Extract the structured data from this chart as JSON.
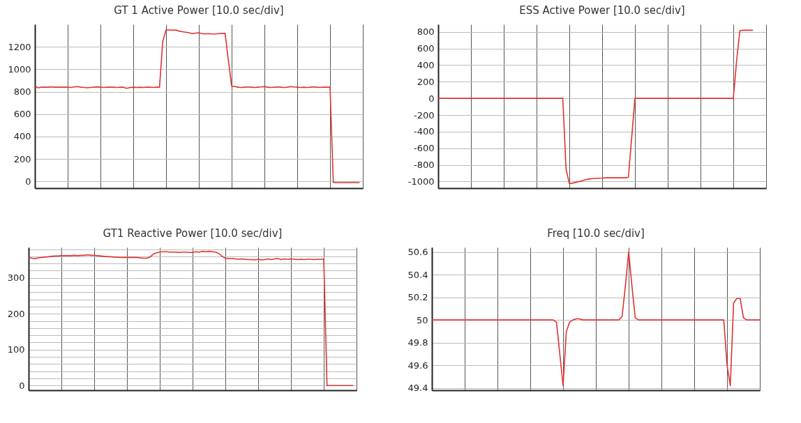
{
  "chart_data": [
    {
      "type": "line",
      "title": "GT 1 Active Power [10.0 sec/div]",
      "categories": [
        null,
        null,
        null,
        null,
        null,
        null,
        null,
        null,
        null,
        null,
        null,
        null,
        null,
        null,
        null,
        null,
        null,
        null,
        null,
        null,
        null,
        null,
        null,
        null,
        null,
        null,
        null,
        null,
        null,
        null,
        null,
        null,
        null,
        null,
        null,
        null,
        null,
        null,
        null,
        null,
        null,
        null,
        null,
        null,
        null,
        null,
        null,
        null,
        null,
        null,
        null,
        null,
        null,
        null,
        null,
        null,
        null,
        null,
        null,
        null,
        null,
        null,
        null,
        null,
        null,
        null,
        null,
        null,
        null,
        null,
        null,
        null,
        null,
        null,
        null,
        null,
        null,
        null,
        null,
        null,
        null,
        null,
        null,
        null,
        null,
        null,
        null,
        null,
        null,
        null,
        null,
        null,
        null,
        null,
        null,
        null,
        null,
        null,
        null,
        null,
        null
      ],
      "ylim": [
        -60,
        1400
      ],
      "yticks": [
        0,
        200,
        400,
        600,
        800,
        1000,
        1200
      ],
      "grid": true,
      "tick_labels": "y",
      "series": [
        {
          "color": "#e03232",
          "values": [
            850,
            835,
            840,
            840,
            840,
            842,
            840,
            840,
            840,
            840,
            840,
            838,
            842,
            845,
            840,
            838,
            835,
            838,
            840,
            843,
            840,
            838,
            840,
            840,
            840,
            838,
            840,
            840,
            830,
            838,
            840,
            838,
            840,
            838,
            840,
            840,
            838,
            840,
            840,
            1250,
            1350,
            1350,
            1348,
            1350,
            1340,
            1335,
            1330,
            1325,
            1318,
            1322,
            1325,
            1318,
            1315,
            1318,
            1315,
            1315,
            1318,
            1320,
            1320,
            1080,
            850,
            845,
            840,
            838,
            840,
            842,
            840,
            838,
            840,
            842,
            845,
            840,
            838,
            840,
            842,
            840,
            838,
            840,
            845,
            842,
            840,
            838,
            840,
            838,
            840,
            842,
            840,
            838,
            840,
            840,
            840,
            -10,
            -10,
            -10,
            -10,
            -10,
            -10,
            -10,
            -10,
            -10,
            null
          ]
        }
      ]
    },
    {
      "type": "line",
      "title": "ESS Active Power [10.0 sec/div]",
      "categories": [
        null,
        null,
        null,
        null,
        null,
        null,
        null,
        null,
        null,
        null,
        null,
        null,
        null,
        null,
        null,
        null,
        null,
        null,
        null,
        null,
        null,
        null,
        null,
        null,
        null,
        null,
        null,
        null,
        null,
        null,
        null,
        null,
        null,
        null,
        null,
        null,
        null,
        null,
        null,
        null,
        null,
        null,
        null,
        null,
        null,
        null,
        null,
        null,
        null,
        null,
        null,
        null,
        null,
        null,
        null,
        null,
        null,
        null,
        null,
        null,
        null,
        null,
        null,
        null,
        null,
        null,
        null,
        null,
        null,
        null,
        null,
        null,
        null,
        null,
        null,
        null,
        null,
        null,
        null,
        null,
        null,
        null,
        null,
        null,
        null,
        null,
        null,
        null,
        null,
        null,
        null,
        null,
        null,
        null,
        null,
        null,
        null,
        null,
        null,
        null,
        null
      ],
      "ylim": [
        -1080,
        890
      ],
      "yticks": [
        -1000,
        -800,
        -600,
        -400,
        -200,
        0,
        200,
        400,
        600,
        800
      ],
      "grid": true,
      "tick_labels": "y",
      "series": [
        {
          "color": "#e03232",
          "values": [
            0,
            0,
            0,
            0,
            0,
            0,
            0,
            0,
            0,
            0,
            0,
            0,
            0,
            0,
            0,
            0,
            0,
            0,
            0,
            0,
            0,
            0,
            0,
            0,
            0,
            0,
            0,
            0,
            0,
            0,
            0,
            0,
            0,
            0,
            0,
            0,
            0,
            0,
            0,
            -850,
            -1025,
            -1020,
            -1010,
            -1000,
            -990,
            -978,
            -970,
            -965,
            -962,
            -960,
            -958,
            -955,
            -955,
            -955,
            -955,
            -955,
            -955,
            -955,
            -950,
            -475,
            0,
            0,
            0,
            0,
            0,
            0,
            0,
            0,
            0,
            0,
            0,
            0,
            0,
            0,
            0,
            0,
            0,
            0,
            0,
            0,
            0,
            0,
            0,
            0,
            0,
            0,
            0,
            0,
            0,
            0,
            0,
            450,
            815,
            820,
            820,
            820,
            820,
            null,
            null,
            null,
            null
          ]
        }
      ]
    },
    {
      "type": "line",
      "title": "GT1 Reactive Power [10.0 sec/div]",
      "categories": [
        null,
        null,
        null,
        null,
        null,
        null,
        null,
        null,
        null,
        null,
        null,
        null,
        null,
        null,
        null,
        null,
        null,
        null,
        null,
        null,
        null,
        null,
        null,
        null,
        null,
        null,
        null,
        null,
        null,
        null,
        null,
        null,
        null,
        null,
        null,
        null,
        null,
        null,
        null,
        null,
        null,
        null,
        null,
        null,
        null,
        null,
        null,
        null,
        null,
        null,
        null,
        null,
        null,
        null,
        null,
        null,
        null,
        null,
        null,
        null,
        null,
        null,
        null,
        null,
        null,
        null,
        null,
        null,
        null,
        null,
        null,
        null,
        null,
        null,
        null,
        null,
        null,
        null,
        null,
        null,
        null,
        null,
        null,
        null,
        null,
        null,
        null,
        null,
        null,
        null,
        null,
        null,
        null,
        null,
        null,
        null,
        null,
        null,
        null,
        null,
        null
      ],
      "ylim": [
        -13,
        385
      ],
      "yticks": [
        0,
        {
          "value": 20,
          "label": null
        },
        {
          "value": 40,
          "label": null
        },
        {
          "value": 60,
          "label": null
        },
        {
          "value": 80,
          "label": null
        },
        100,
        {
          "value": 120,
          "label": null
        },
        {
          "value": 140,
          "label": null
        },
        {
          "value": 160,
          "label": null
        },
        {
          "value": 180,
          "label": null
        },
        200,
        {
          "value": 220,
          "label": null
        },
        {
          "value": 240,
          "label": null
        },
        {
          "value": 260,
          "label": null
        },
        {
          "value": 280,
          "label": null
        },
        300,
        {
          "value": 320,
          "label": null
        },
        {
          "value": 340,
          "label": null
        },
        {
          "value": 360,
          "label": null
        },
        {
          "value": 380,
          "label": null
        }
      ],
      "grid": true,
      "tick_labels": "y",
      "series": [
        {
          "color": "#e03232",
          "values": [
            357,
            355,
            354,
            356,
            357,
            358,
            359,
            360,
            361,
            361,
            362,
            362,
            362,
            362,
            363,
            362,
            363,
            363,
            364,
            363,
            363,
            362,
            361,
            360,
            359,
            359,
            358,
            358,
            357,
            357,
            357,
            357,
            357,
            357,
            356,
            355,
            355,
            358,
            366,
            370,
            372,
            373,
            373,
            372,
            372,
            372,
            371,
            372,
            372,
            371,
            371,
            373,
            372,
            374,
            373,
            374,
            373,
            372,
            368,
            360,
            355,
            354,
            354,
            353,
            352,
            353,
            352,
            351,
            351,
            350,
            352,
            350,
            351,
            353,
            351,
            353,
            354,
            351,
            353,
            352,
            353,
            352,
            351,
            352,
            351,
            352,
            352,
            351,
            352,
            352,
            352,
            0,
            0,
            0,
            0,
            0,
            0,
            0,
            0,
            0,
            null
          ]
        }
      ]
    },
    {
      "type": "line",
      "title": "Freq [10.0 sec/div]",
      "categories": [
        null,
        null,
        null,
        null,
        null,
        null,
        null,
        null,
        null,
        null,
        null,
        null,
        null,
        null,
        null,
        null,
        null,
        null,
        null,
        null,
        null,
        null,
        null,
        null,
        null,
        null,
        null,
        null,
        null,
        null,
        null,
        null,
        null,
        null,
        null,
        null,
        null,
        null,
        null,
        null,
        null,
        null,
        null,
        null,
        null,
        null,
        null,
        null,
        null,
        null,
        null,
        null,
        null,
        null,
        null,
        null,
        null,
        null,
        null,
        null,
        null,
        null,
        null,
        null,
        null,
        null,
        null,
        null,
        null,
        null,
        null,
        null,
        null,
        null,
        null,
        null,
        null,
        null,
        null,
        null,
        null,
        null,
        null,
        null,
        null,
        null,
        null,
        null,
        null,
        null,
        null,
        null,
        null,
        null,
        null,
        null,
        null,
        null,
        null,
        null,
        null
      ],
      "ylim": [
        49.38,
        50.64
      ],
      "yticks": [
        49.4,
        49.6,
        49.8,
        50,
        50.2,
        50.4,
        50.6
      ],
      "grid": true,
      "tick_labels": "y",
      "series": [
        {
          "color": "#e03232",
          "values": [
            50,
            50,
            50,
            50,
            50,
            50,
            50,
            50,
            50,
            50,
            50,
            50,
            50,
            50,
            50,
            50,
            50,
            50,
            50,
            50,
            50,
            50,
            50,
            50,
            50,
            50,
            50,
            50,
            50,
            50,
            50,
            50,
            50,
            50,
            50,
            50,
            50,
            50,
            49.98,
            49.7,
            49.42,
            49.9,
            49.98,
            50,
            50.01,
            50.01,
            50,
            50,
            50,
            50,
            50,
            50,
            50,
            50,
            50,
            50,
            50,
            50,
            50.03,
            50.3,
            50.6,
            50.3,
            50.02,
            50,
            50,
            50,
            50,
            50,
            50,
            50,
            50,
            50,
            50,
            50,
            50,
            50,
            50,
            50,
            50,
            50,
            50,
            50,
            50,
            50,
            50,
            50,
            50,
            50,
            50,
            50,
            49.6,
            49.42,
            50.15,
            50.19,
            50.19,
            50.02,
            50,
            50,
            50,
            50,
            50
          ]
        }
      ]
    }
  ]
}
